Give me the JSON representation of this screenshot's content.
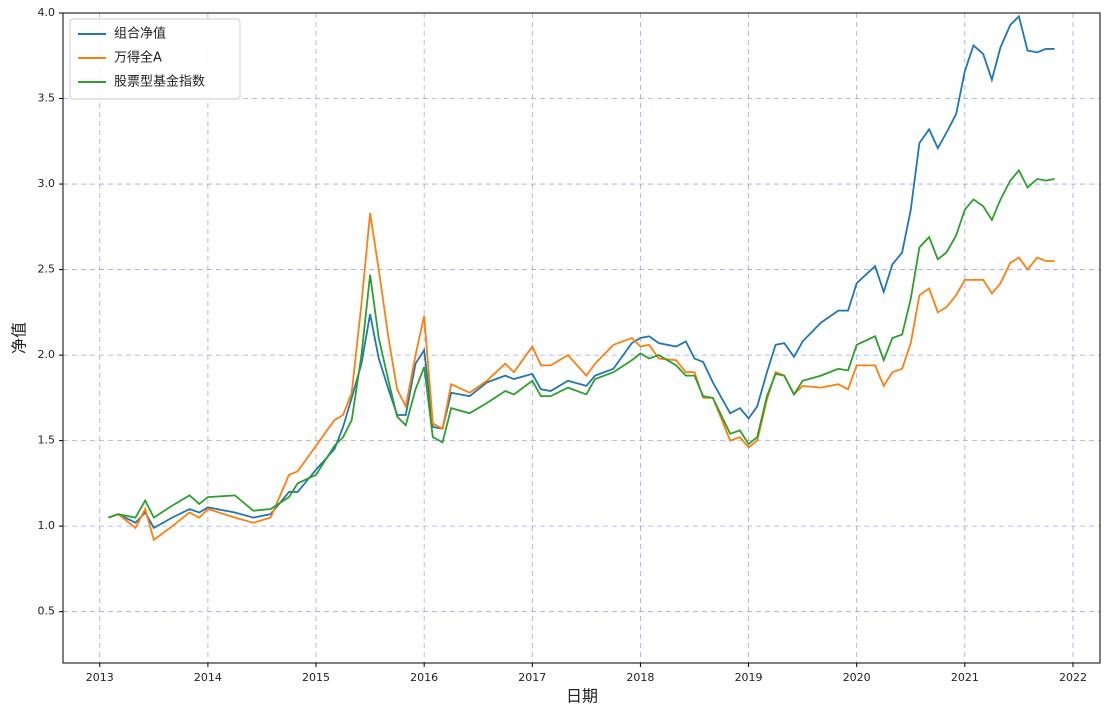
{
  "chart_data": {
    "type": "line",
    "xlabel": "日期",
    "ylabel": "净值",
    "x": [
      2013.08,
      2013.17,
      2013.33,
      2013.42,
      2013.5,
      2013.67,
      2013.83,
      2013.92,
      2014.0,
      2014.25,
      2014.42,
      2014.58,
      2014.75,
      2014.83,
      2015.0,
      2015.17,
      2015.25,
      2015.33,
      2015.42,
      2015.5,
      2015.58,
      2015.67,
      2015.75,
      2015.83,
      2015.92,
      2016.0,
      2016.08,
      2016.17,
      2016.25,
      2016.42,
      2016.58,
      2016.75,
      2016.83,
      2017.0,
      2017.08,
      2017.17,
      2017.33,
      2017.5,
      2017.58,
      2017.75,
      2017.92,
      2018.0,
      2018.08,
      2018.17,
      2018.33,
      2018.42,
      2018.5,
      2018.58,
      2018.67,
      2018.83,
      2018.92,
      2019.0,
      2019.08,
      2019.17,
      2019.25,
      2019.33,
      2019.42,
      2019.5,
      2019.67,
      2019.83,
      2019.92,
      2020.0,
      2020.17,
      2020.25,
      2020.33,
      2020.42,
      2020.5,
      2020.58,
      2020.67,
      2020.75,
      2020.83,
      2020.92,
      2021.0,
      2021.08,
      2021.17,
      2021.25,
      2021.33,
      2021.42,
      2021.5,
      2021.58,
      2021.67,
      2021.75,
      2021.83
    ],
    "series": [
      {
        "name": "组合净值",
        "color": "#1f77b4",
        "values": [
          1.05,
          1.07,
          1.02,
          1.08,
          0.99,
          1.05,
          1.1,
          1.08,
          1.11,
          1.08,
          1.05,
          1.07,
          1.2,
          1.2,
          1.33,
          1.45,
          1.58,
          1.75,
          1.95,
          2.24,
          1.98,
          1.8,
          1.65,
          1.65,
          1.95,
          2.03,
          1.58,
          1.57,
          1.78,
          1.76,
          1.84,
          1.88,
          1.86,
          1.89,
          1.8,
          1.79,
          1.85,
          1.82,
          1.88,
          1.92,
          2.07,
          2.1,
          2.11,
          2.07,
          2.05,
          2.08,
          1.98,
          1.96,
          1.84,
          1.66,
          1.69,
          1.63,
          1.7,
          1.9,
          2.06,
          2.07,
          1.99,
          2.08,
          2.19,
          2.26,
          2.26,
          2.42,
          2.52,
          2.37,
          2.53,
          2.6,
          2.85,
          3.24,
          3.32,
          3.21,
          3.3,
          3.41,
          3.66,
          3.81,
          3.76,
          3.61,
          3.8,
          3.93,
          3.98,
          3.78,
          3.77,
          3.79,
          3.79
        ]
      },
      {
        "name": "万得全A",
        "color": "#ff7f0e",
        "values": [
          1.05,
          1.07,
          0.99,
          1.1,
          0.92,
          1.0,
          1.08,
          1.05,
          1.1,
          1.05,
          1.02,
          1.05,
          1.3,
          1.32,
          1.47,
          1.62,
          1.65,
          1.78,
          2.3,
          2.83,
          2.5,
          2.1,
          1.8,
          1.7,
          2.0,
          2.23,
          1.6,
          1.57,
          1.83,
          1.78,
          1.85,
          1.95,
          1.9,
          2.05,
          1.94,
          1.94,
          2.0,
          1.88,
          1.95,
          2.06,
          2.1,
          2.05,
          2.06,
          1.98,
          1.97,
          1.9,
          1.9,
          1.75,
          1.75,
          1.5,
          1.52,
          1.46,
          1.5,
          1.74,
          1.9,
          1.88,
          1.77,
          1.82,
          1.81,
          1.83,
          1.8,
          1.94,
          1.94,
          1.82,
          1.9,
          1.92,
          2.07,
          2.35,
          2.39,
          2.25,
          2.28,
          2.35,
          2.44,
          2.44,
          2.44,
          2.36,
          2.42,
          2.54,
          2.57,
          2.5,
          2.57,
          2.55,
          2.55
        ]
      },
      {
        "name": "股票型基金指数",
        "color": "#2ca02c",
        "values": [
          1.05,
          1.07,
          1.05,
          1.15,
          1.05,
          1.12,
          1.18,
          1.13,
          1.17,
          1.18,
          1.09,
          1.1,
          1.17,
          1.25,
          1.3,
          1.47,
          1.52,
          1.62,
          2.0,
          2.47,
          2.1,
          1.85,
          1.64,
          1.59,
          1.8,
          1.93,
          1.52,
          1.49,
          1.69,
          1.66,
          1.72,
          1.79,
          1.77,
          1.85,
          1.76,
          1.76,
          1.81,
          1.77,
          1.86,
          1.9,
          1.97,
          2.01,
          1.98,
          2.0,
          1.94,
          1.88,
          1.88,
          1.76,
          1.75,
          1.54,
          1.56,
          1.48,
          1.52,
          1.76,
          1.89,
          1.88,
          1.77,
          1.85,
          1.88,
          1.92,
          1.91,
          2.06,
          2.11,
          1.97,
          2.1,
          2.12,
          2.33,
          2.63,
          2.69,
          2.56,
          2.6,
          2.7,
          2.85,
          2.91,
          2.87,
          2.79,
          2.91,
          3.02,
          3.08,
          2.98,
          3.03,
          3.02,
          3.03
        ]
      }
    ],
    "xlim": [
      2012.66,
      2022.25
    ],
    "xticks": [
      2013,
      2014,
      2015,
      2016,
      2017,
      2018,
      2019,
      2020,
      2021,
      2022
    ],
    "ylim": [
      0.2,
      4.0
    ],
    "yticks": [
      0.5,
      {
        "value": 1,
        "label": "1.0"
      },
      1.5,
      {
        "value": 2,
        "label": "2.0"
      },
      2.5,
      {
        "value": 3,
        "label": "3.0"
      },
      3.5,
      {
        "value": 4,
        "label": "4.0"
      }
    ],
    "grid": true,
    "legend": "upper-left"
  }
}
